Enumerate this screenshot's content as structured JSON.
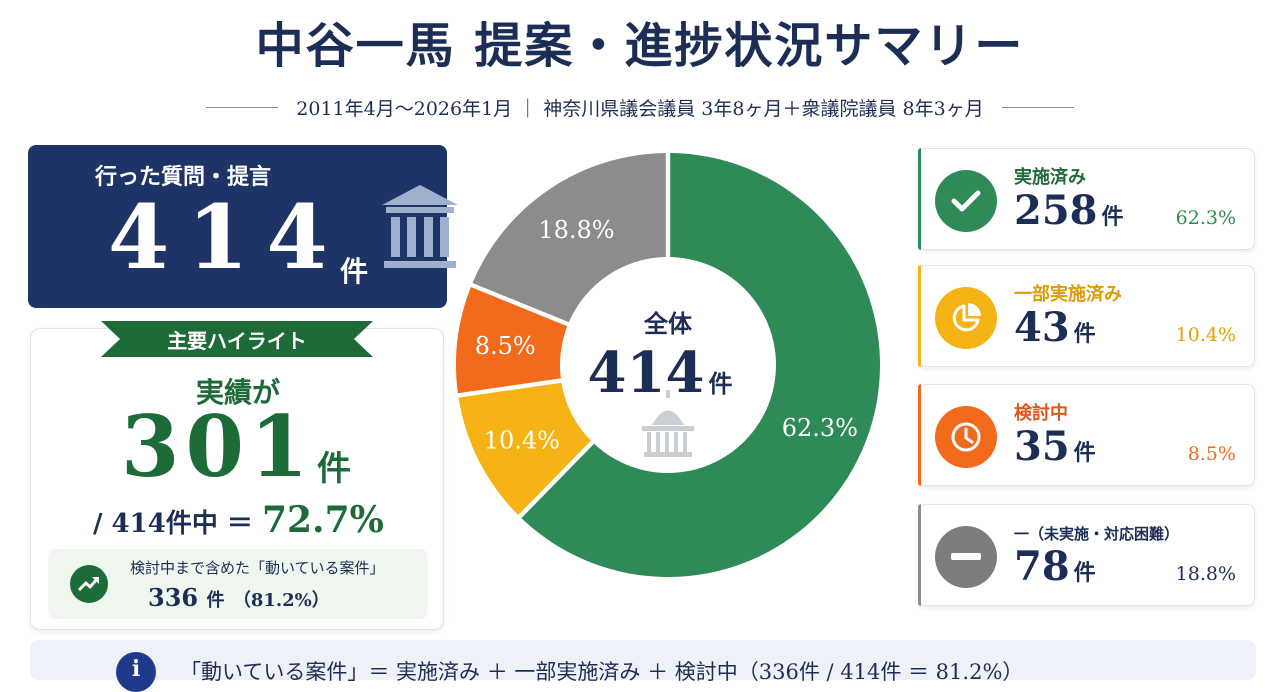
{
  "title": "中谷一馬 提案・進捗状況サマリー",
  "subtitle": "2011年4月～2026年1月 ｜ 神奈川県議会議員 3年8ヶ月＋衆議院議員 8年3ヶ月",
  "total_card": {
    "label": "行った質問・提言",
    "value": "414",
    "unit": "件",
    "icon": "government-building-icon"
  },
  "highlight": {
    "ribbon": "主要ハイライト",
    "subtitle": "実績が",
    "value": "301",
    "unit": "件",
    "ratio_prefix": "/ 414件中 ＝",
    "ratio_pct": "72.7%",
    "note_label": "検討中まで含めた「動いている案件」",
    "note_value": "336",
    "note_unit": "件",
    "note_pct": "（81.2%）",
    "icon": "trending-up-icon"
  },
  "chart_data": {
    "type": "pie",
    "style": "donut",
    "center_label": "全体",
    "center_value": "414",
    "center_unit": "件",
    "slices": [
      {
        "label": "実施済み",
        "value": 258,
        "pct_label": "62.3%",
        "color": "#2e8b57"
      },
      {
        "label": "一部実施済み",
        "value": 43,
        "pct_label": "10.4%",
        "color": "#f5b316"
      },
      {
        "label": "検討中",
        "value": 35,
        "pct_label": "8.5%",
        "color": "#f26a1b"
      },
      {
        "label": "一（未実施・対応困難）",
        "value": 78,
        "pct_label": "18.8%",
        "color": "#8c8c8c"
      }
    ]
  },
  "status_cards": [
    {
      "label": "実施済み",
      "value": "258",
      "unit": "件",
      "pct": "62.3%",
      "color": "#2e8b57",
      "icon": "checkmark-icon"
    },
    {
      "label": "一部実施済み",
      "value": "43",
      "unit": "件",
      "pct": "10.4%",
      "color": "#f5b316",
      "icon": "partial-pie-icon"
    },
    {
      "label": "検討中",
      "value": "35",
      "unit": "件",
      "pct": "8.5%",
      "color": "#f26a1b",
      "icon": "clock-icon"
    },
    {
      "label": "一（未実施・対応困難）",
      "value": "78",
      "unit": "件",
      "pct": "18.8%",
      "color": "#8c8c8c",
      "icon": "minus-icon"
    }
  ],
  "info_bar": {
    "text": "「動いている案件」＝ 実施済み ＋ 一部実施済み ＋ 検討中（336件 / 414件 ＝ 81.2%）",
    "icon": "info-icon",
    "accent": "#1f3a8a"
  }
}
